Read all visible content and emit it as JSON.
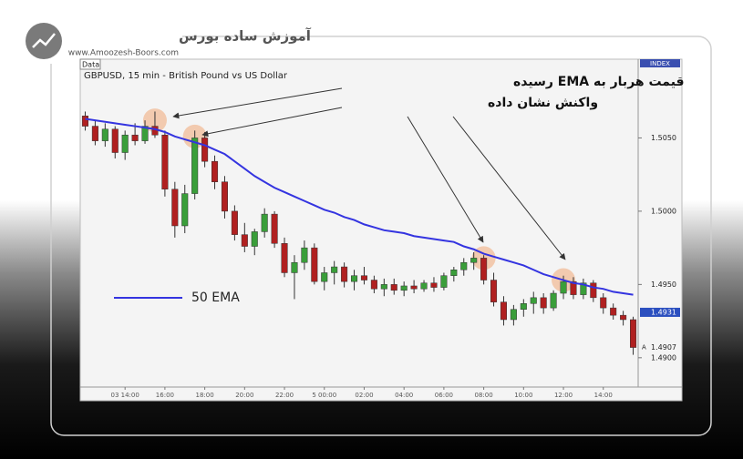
{
  "brand": {
    "name": "آموزش ساده بورس",
    "url": "www.Amoozesh-Boors.com"
  },
  "chart_data": {
    "type": "candlestick",
    "source_label": "Data",
    "title": "GBPUSD, 15 min - British Pound vs US Dollar",
    "axis_label": "INDEX",
    "annotation": [
      "قیمت هربار به EMA رسیده",
      "واکنش نشان داده"
    ],
    "categories": [
      null,
      null,
      null,
      null,
      "03 14:00",
      null,
      null,
      null,
      "16:00",
      null,
      null,
      null,
      "18:00",
      null,
      null,
      null,
      "20:00",
      null,
      null,
      null,
      "22:00",
      null,
      null,
      null,
      "5 00:00",
      null,
      null,
      null,
      "02:00",
      null,
      null,
      null,
      "04:00",
      null,
      null,
      null,
      "06:00",
      null,
      null,
      null,
      "08:00",
      null,
      null,
      null,
      "10:00",
      null,
      null,
      null,
      "12:00",
      null,
      null,
      null,
      "14:00",
      null,
      null,
      null
    ],
    "candles": {
      "color_up": "#3a9e3a",
      "color_down": "#b02020",
      "open": [
        1.5065,
        1.5058,
        1.5048,
        1.5056,
        1.504,
        1.5052,
        1.5048,
        1.5058,
        1.5052,
        1.5015,
        1.499,
        1.5012,
        1.505,
        1.5034,
        1.502,
        1.5,
        1.4984,
        1.4976,
        1.4986,
        1.4998,
        1.4978,
        1.4958,
        1.4965,
        1.4975,
        1.4952,
        1.4958,
        1.4962,
        1.4952,
        1.4956,
        1.4953,
        1.4947,
        1.495,
        1.4946,
        1.4949,
        1.4947,
        1.4951,
        1.4948,
        1.4956,
        1.496,
        1.4965,
        1.4968,
        1.4953,
        1.4938,
        1.4926,
        1.4933,
        1.4937,
        1.4941,
        1.4934,
        1.4944,
        1.4952,
        1.4943,
        1.4951,
        1.4941,
        1.4934,
        1.4929,
        1.4926
      ],
      "high": [
        1.5068,
        1.5062,
        1.506,
        1.5058,
        1.5055,
        1.506,
        1.5062,
        1.5068,
        1.5055,
        1.502,
        1.5018,
        1.5055,
        1.5054,
        1.5038,
        1.5024,
        1.5004,
        1.4992,
        1.4988,
        1.5002,
        1.5,
        1.4982,
        1.497,
        1.498,
        1.4978,
        1.4962,
        1.4966,
        1.4965,
        1.496,
        1.4962,
        1.4956,
        1.4954,
        1.4954,
        1.4952,
        1.4953,
        1.4953,
        1.4955,
        1.4958,
        1.4962,
        1.4968,
        1.4972,
        1.497,
        1.4958,
        1.4942,
        1.4936,
        1.494,
        1.4945,
        1.4944,
        1.4946,
        1.4956,
        1.4955,
        1.4954,
        1.4953,
        1.4944,
        1.4937,
        1.4932,
        1.4928
      ],
      "low": [
        1.5055,
        1.5045,
        1.5044,
        1.5036,
        1.5035,
        1.5045,
        1.5046,
        1.505,
        1.501,
        1.4982,
        1.4985,
        1.5008,
        1.503,
        1.5015,
        1.4995,
        1.498,
        1.4972,
        1.497,
        1.4982,
        1.4975,
        1.4955,
        1.494,
        1.496,
        1.495,
        1.4946,
        1.495,
        1.4948,
        1.4946,
        1.495,
        1.4944,
        1.4942,
        1.4943,
        1.4942,
        1.4944,
        1.4945,
        1.4945,
        1.4946,
        1.4952,
        1.4956,
        1.496,
        1.495,
        1.4935,
        1.4922,
        1.4922,
        1.4928,
        1.493,
        1.493,
        1.4932,
        1.494,
        1.494,
        1.494,
        1.4938,
        1.493,
        1.4926,
        1.4922,
        1.4902
      ],
      "close": [
        1.5058,
        1.5048,
        1.5056,
        1.504,
        1.5052,
        1.5048,
        1.5058,
        1.5052,
        1.5015,
        1.499,
        1.5012,
        1.505,
        1.5034,
        1.502,
        1.5,
        1.4984,
        1.4976,
        1.4986,
        1.4998,
        1.4978,
        1.4958,
        1.4965,
        1.4975,
        1.4952,
        1.4958,
        1.4962,
        1.4952,
        1.4956,
        1.4953,
        1.4947,
        1.495,
        1.4946,
        1.4949,
        1.4947,
        1.4951,
        1.4948,
        1.4956,
        1.496,
        1.4965,
        1.4968,
        1.4953,
        1.4938,
        1.4926,
        1.4933,
        1.4937,
        1.4941,
        1.4934,
        1.4944,
        1.4952,
        1.4943,
        1.4951,
        1.4941,
        1.4934,
        1.4929,
        1.4926,
        1.4907
      ]
    },
    "series": [
      {
        "name": "50 EMA",
        "color": "#3434e0",
        "values": [
          1.5063,
          1.5062,
          1.5061,
          1.506,
          1.5059,
          1.5058,
          1.5057,
          1.5056,
          1.5054,
          1.5051,
          1.5049,
          1.5047,
          1.5045,
          1.5042,
          1.5039,
          1.5034,
          1.5029,
          1.5024,
          1.502,
          1.5016,
          1.5013,
          1.501,
          1.5007,
          1.5004,
          1.5001,
          1.4999,
          1.4996,
          1.4994,
          1.4991,
          1.4989,
          1.4987,
          1.4986,
          1.4985,
          1.4983,
          1.4982,
          1.4981,
          1.498,
          1.4979,
          1.4976,
          1.4974,
          1.4971,
          1.4969,
          1.4967,
          1.4965,
          1.4963,
          1.496,
          1.4957,
          1.4955,
          1.4953,
          1.4951,
          1.495,
          1.4948,
          1.4947,
          1.4945,
          1.4944,
          1.4943
        ]
      }
    ],
    "price_markers": [
      {
        "value": 1.4931,
        "label": "1.4931"
      },
      {
        "value": 1.4907,
        "label": "1.4907",
        "marker": "A"
      }
    ],
    "ylim": [
      1.488,
      1.50975
    ],
    "yticks": [
      {
        "value": 1.505,
        "label": "1.5050"
      },
      {
        "value": 1.5,
        "label": "1.5000"
      },
      {
        "value": 1.495,
        "label": "1.4950"
      },
      {
        "value": 1.49,
        "label": "1.4900"
      }
    ]
  }
}
